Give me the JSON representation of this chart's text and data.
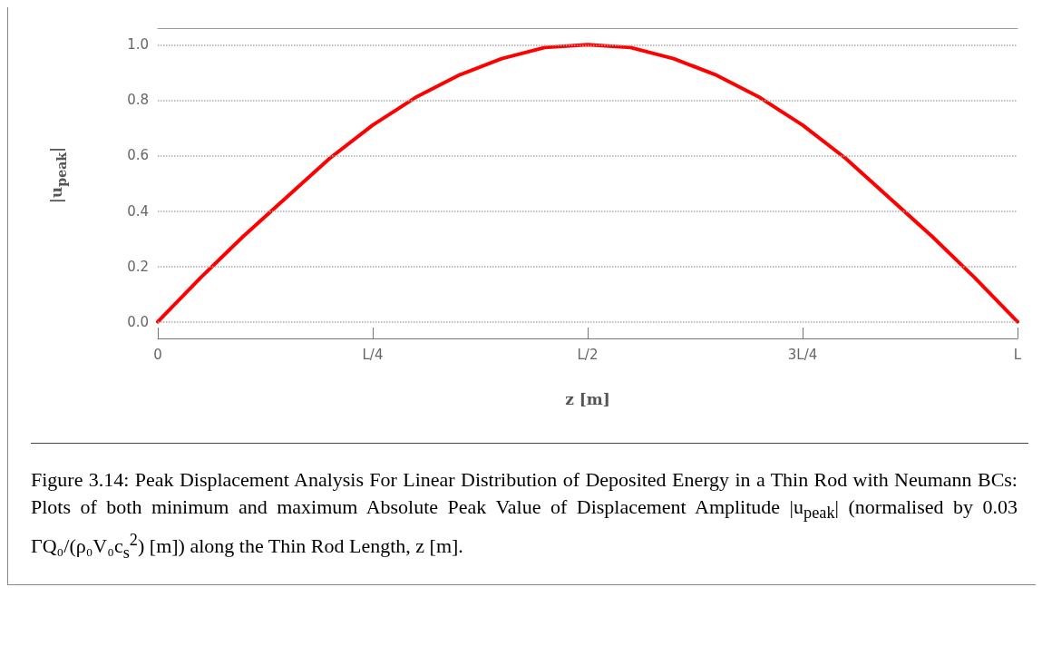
{
  "chart_data": {
    "type": "line",
    "xlabel": "z [m]",
    "ylabel": "|u$_{peak}$|",
    "categories": [
      "0",
      null,
      null,
      null,
      null,
      "L/4",
      null,
      null,
      null,
      null,
      "L/2",
      null,
      null,
      null,
      null,
      "3L/4",
      null,
      null,
      null,
      null,
      "L"
    ],
    "series": [
      {
        "color": "#ff0000",
        "values": [
          0,
          0.16,
          0.31,
          0.45,
          0.59,
          0.71,
          0.81,
          0.89,
          0.95,
          0.99,
          1,
          0.99,
          0.95,
          0.89,
          0.81,
          0.71,
          0.59,
          0.45,
          0.31,
          0.16,
          0
        ]
      }
    ],
    "ylim": [
      -0.06,
      1.06
    ],
    "yticks": [
      {
        "value": 0,
        "label": "0.0"
      },
      {
        "value": 0.2,
        "label": "0.2"
      },
      {
        "value": 0.4,
        "label": "0.4"
      },
      {
        "value": 0.6,
        "label": "0.6"
      },
      {
        "value": 0.8,
        "label": "0.8"
      },
      {
        "value": 1,
        "label": "1.0"
      }
    ],
    "grid": "y",
    "marker": "none",
    "line_style": "solid",
    "annotations": [
      "Figure 3.14: Peak Displacement Analysis For Linear Distribution of Deposited Energy in a Thin Rod with Neumann BCs: Plots of both minimum and maximum Absolute Peak Value of Displacement Amplitude |u$_{peak}$| (normalised by 0.03 ΓQ₀/(ρ₀V₀c$_{s}$$^{2}$) [m]) along the Thin Rod Length, z [m]."
    ]
  }
}
